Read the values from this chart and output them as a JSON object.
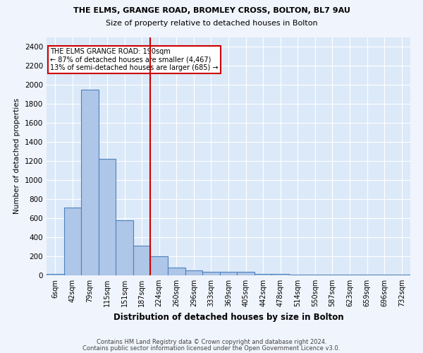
{
  "title1": "THE ELMS, GRANGE ROAD, BROMLEY CROSS, BOLTON, BL7 9AU",
  "title2": "Size of property relative to detached houses in Bolton",
  "xlabel": "Distribution of detached houses by size in Bolton",
  "ylabel": "Number of detached properties",
  "bar_labels": [
    "6sqm",
    "42sqm",
    "79sqm",
    "115sqm",
    "151sqm",
    "187sqm",
    "224sqm",
    "260sqm",
    "296sqm",
    "333sqm",
    "369sqm",
    "405sqm",
    "442sqm",
    "478sqm",
    "514sqm",
    "550sqm",
    "587sqm",
    "623sqm",
    "659sqm",
    "696sqm",
    "732sqm"
  ],
  "bar_values": [
    15,
    710,
    1950,
    1225,
    575,
    310,
    200,
    80,
    55,
    35,
    35,
    35,
    15,
    15,
    10,
    5,
    5,
    5,
    5,
    5,
    5
  ],
  "bar_color": "#aec6e8",
  "bar_edge_color": "#4f81bd",
  "vline_x_index": 5,
  "vline_color": "#cc0000",
  "annotation_text": "THE ELMS GRANGE ROAD: 190sqm\n← 87% of detached houses are smaller (4,467)\n13% of semi-detached houses are larger (685) →",
  "annotation_box_color": "#ffffff",
  "annotation_box_edge": "#cc0000",
  "ylim": [
    0,
    2500
  ],
  "yticks": [
    0,
    200,
    400,
    600,
    800,
    1000,
    1200,
    1400,
    1600,
    1800,
    2000,
    2200,
    2400
  ],
  "bg_color": "#dce9f8",
  "grid_color": "#ffffff",
  "title1_fontsize": 8.0,
  "title2_fontsize": 8.0,
  "footer1": "Contains HM Land Registry data © Crown copyright and database right 2024.",
  "footer2": "Contains public sector information licensed under the Open Government Licence v3.0."
}
